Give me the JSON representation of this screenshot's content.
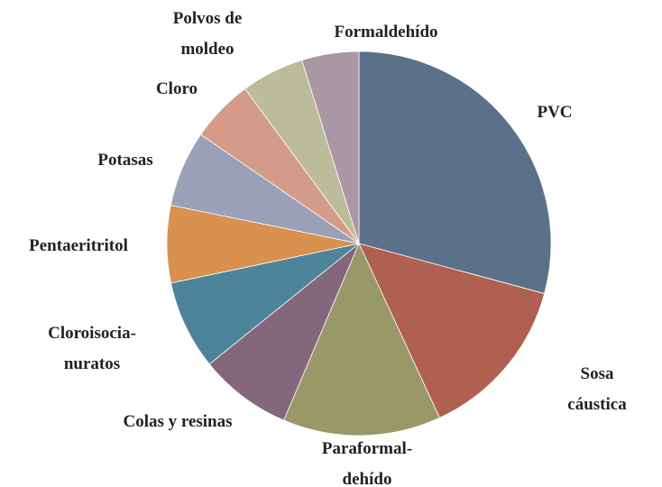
{
  "chart_data": {
    "type": "pie",
    "categories": [
      "PVC",
      "Sosa cáustica",
      "Paraformal-\ndehído",
      "Colas y resinas",
      "Cloroisocia-\nnuratos",
      "Pentaeritritol",
      "Potasas",
      "Cloro",
      "Polvos de\nmoldeo",
      "Formaldehído"
    ],
    "values": [
      29.2,
      13.9,
      13.3,
      7.8,
      7.5,
      6.5,
      6.4,
      5.3,
      5.3,
      4.8
    ],
    "colors": [
      "#5b7089",
      "#b06050",
      "#999868",
      "#84667d",
      "#4d8499",
      "#d8914f",
      "#9aa0b8",
      "#d49c88",
      "#bcbc9b",
      "#ab96a3"
    ]
  }
}
